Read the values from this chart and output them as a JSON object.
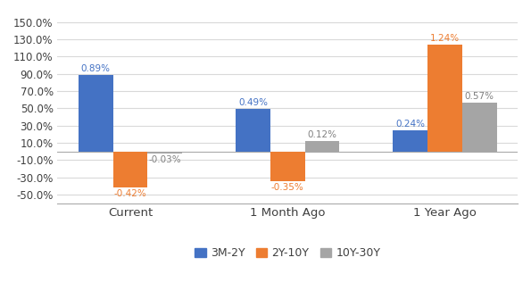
{
  "categories": [
    "Current",
    "1 Month Ago",
    "1 Year Ago"
  ],
  "series": {
    "3M-2Y": [
      0.89,
      0.49,
      0.24
    ],
    "2Y-10Y": [
      -0.42,
      -0.35,
      1.24
    ],
    "10Y-30Y": [
      -0.03,
      0.12,
      0.57
    ]
  },
  "colors": {
    "3M-2Y": "#4472C4",
    "2Y-10Y": "#ED7D31",
    "10Y-30Y": "#A5A5A5"
  },
  "label_colors": {
    "3M-2Y": "#4472C4",
    "2Y-10Y": "#ED7D31",
    "10Y-30Y": "#808080"
  },
  "ylim": [
    -0.6,
    1.6
  ],
  "yticks": [
    -0.5,
    -0.3,
    -0.1,
    0.1,
    0.3,
    0.5,
    0.7,
    0.9,
    1.1,
    1.3,
    1.5
  ],
  "bar_width": 0.22,
  "background_color": "#FFFFFF",
  "grid_color": "#D9D9D9"
}
